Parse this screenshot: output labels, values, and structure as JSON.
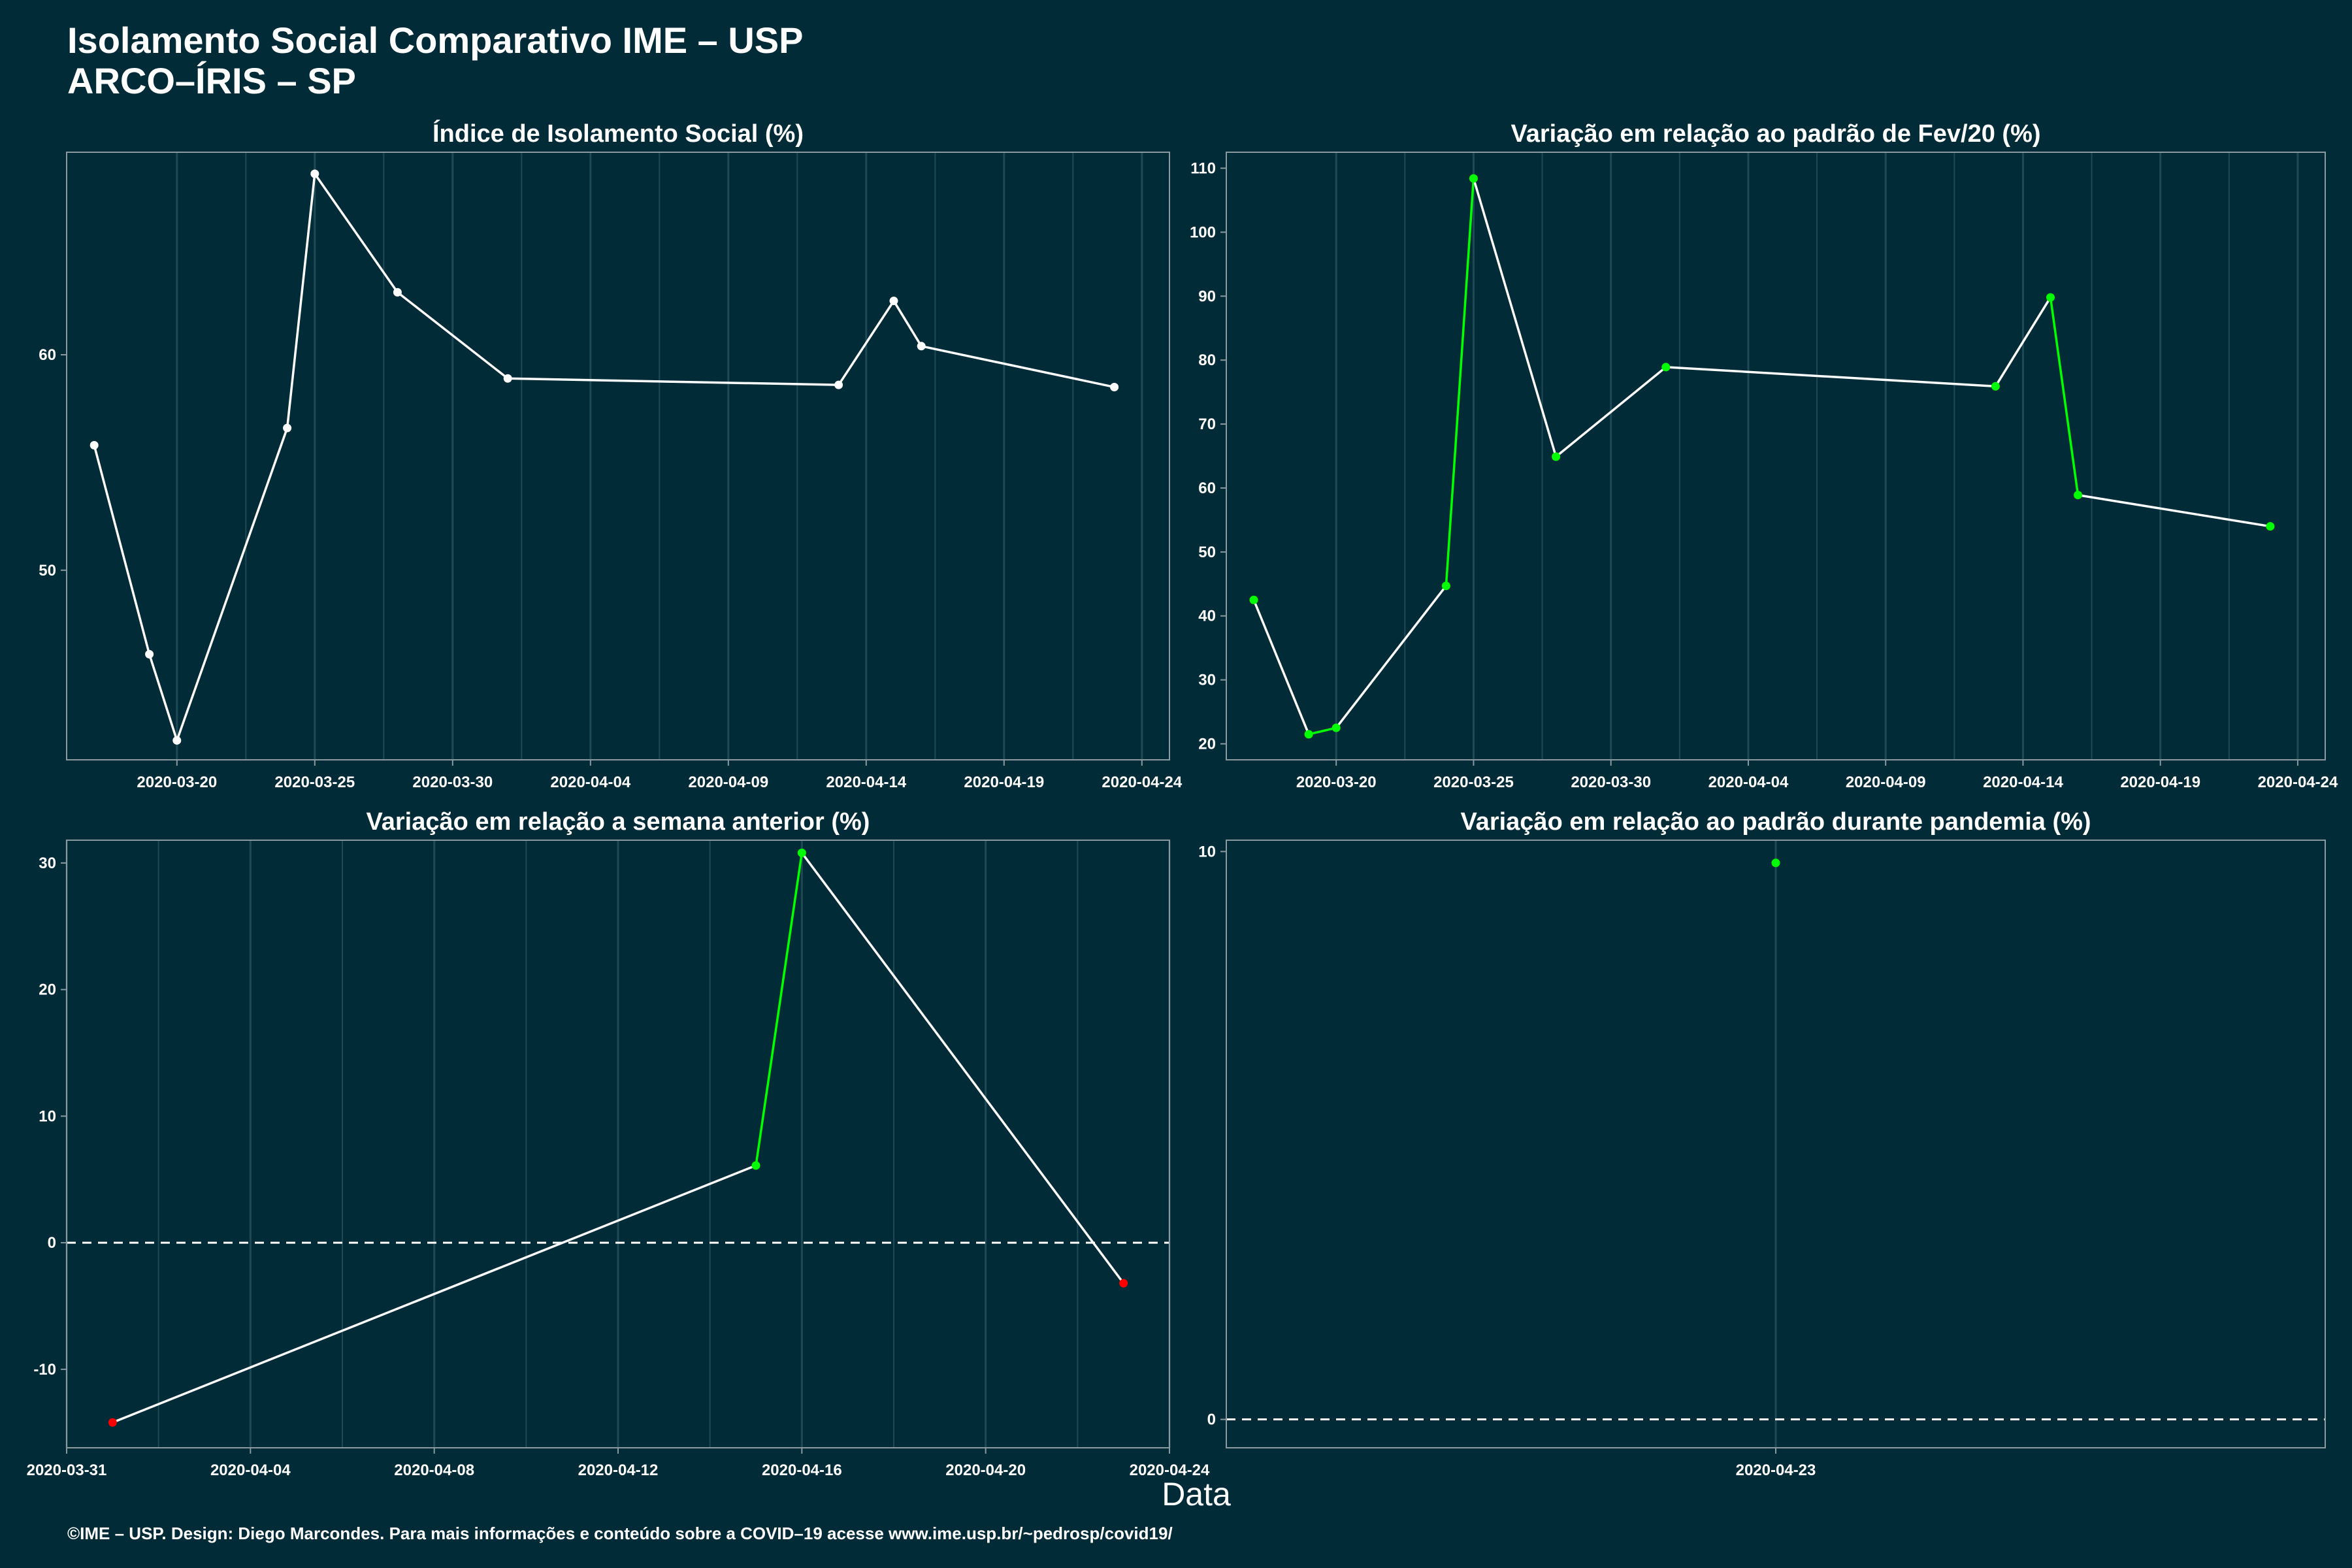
{
  "title": {
    "line1": "Isolamento Social Comparativo IME – USP",
    "line2": "ARCO–ÍRIS – SP"
  },
  "footer": "©IME – USP. Design: Diego Marcondes. Para mais informações e conteúdo sobre a COVID–19 acesse www.ime.usp.br/~pedrosp/covid19/",
  "colors": {
    "background": "#022b38",
    "line": "#ffffff",
    "positive": "#00ff00",
    "negative": "#ff0000",
    "panel_border": "#8a9aa0",
    "grid": "#1f4a55"
  },
  "chart_data": [
    {
      "type": "line",
      "title": "Índice de Isolamento Social (%)",
      "xlabel": "Data",
      "ylabel": "",
      "x_axis": "date",
      "xlim": [
        "2020-03-16",
        "2020-04-25"
      ],
      "ylim": [
        41.2,
        69.4
      ],
      "x_ticks": [
        "2020-03-20",
        "2020-03-25",
        "2020-03-30",
        "2020-04-04",
        "2020-04-09",
        "2020-04-14",
        "2020-04-19",
        "2020-04-24"
      ],
      "y_ticks": [
        50,
        60
      ],
      "grid": true,
      "series": [
        {
          "x": [
            "2020-03-17",
            "2020-03-19",
            "2020-03-20",
            "2020-03-24",
            "2020-03-25",
            "2020-03-28",
            "2020-04-01",
            "2020-04-13",
            "2020-04-15",
            "2020-04-16",
            "2020-04-23"
          ],
          "values": [
            55.8,
            46.1,
            42.1,
            56.6,
            68.4,
            62.9,
            58.9,
            58.6,
            62.5,
            60.4,
            58.5
          ],
          "point_colors": [
            "#ffffff",
            "#ffffff",
            "#ffffff",
            "#ffffff",
            "#ffffff",
            "#ffffff",
            "#ffffff",
            "#ffffff",
            "#ffffff",
            "#ffffff",
            "#ffffff"
          ],
          "segment_colors": [
            "#ffffff",
            "#ffffff",
            "#ffffff",
            "#ffffff",
            "#ffffff",
            "#ffffff",
            "#ffffff",
            "#ffffff",
            "#ffffff",
            "#ffffff"
          ]
        }
      ]
    },
    {
      "type": "line",
      "title": "Variação em relação ao padrão de Fev/20 (%)",
      "xlabel": "Data",
      "ylabel": "",
      "x_axis": "date",
      "xlim": [
        "2020-03-16",
        "2020-04-25"
      ],
      "ylim": [
        17.5,
        112.5
      ],
      "x_ticks": [
        "2020-03-20",
        "2020-03-25",
        "2020-03-30",
        "2020-04-04",
        "2020-04-09",
        "2020-04-14",
        "2020-04-19",
        "2020-04-24"
      ],
      "y_ticks": [
        20,
        30,
        40,
        50,
        60,
        70,
        80,
        90,
        100,
        110
      ],
      "grid": true,
      "series": [
        {
          "x": [
            "2020-03-17",
            "2020-03-19",
            "2020-03-20",
            "2020-03-24",
            "2020-03-25",
            "2020-03-28",
            "2020-04-01",
            "2020-04-13",
            "2020-04-15",
            "2020-04-16",
            "2020-04-23"
          ],
          "values": [
            42.5,
            21.5,
            22.5,
            44.7,
            108.4,
            64.9,
            78.9,
            75.9,
            89.8,
            58.9,
            54.0
          ],
          "point_colors": [
            "#00ff00",
            "#00ff00",
            "#00ff00",
            "#00ff00",
            "#00ff00",
            "#00ff00",
            "#00ff00",
            "#00ff00",
            "#00ff00",
            "#00ff00",
            "#00ff00"
          ],
          "segment_colors": [
            "#ffffff",
            "#00ff00",
            "#ffffff",
            "#00ff00",
            "#ffffff",
            "#ffffff",
            "#ffffff",
            "#ffffff",
            "#00ff00",
            "#ffffff"
          ]
        }
      ]
    },
    {
      "type": "line",
      "title": "Variação em relação a semana anterior (%)",
      "xlabel": "Data",
      "ylabel": "",
      "x_axis": "date",
      "xlim": [
        "2020-03-31",
        "2020-04-24"
      ],
      "ylim": [
        -16.2,
        31.8
      ],
      "x_ticks": [
        "2020-03-31",
        "2020-04-04",
        "2020-04-08",
        "2020-04-12",
        "2020-04-16",
        "2020-04-20",
        "2020-04-24"
      ],
      "y_ticks": [
        -10,
        0,
        10,
        20,
        30
      ],
      "grid": true,
      "reference_line": 0,
      "series": [
        {
          "x": [
            "2020-04-01",
            "2020-04-15",
            "2020-04-16",
            "2020-04-23"
          ],
          "values": [
            -14.2,
            6.1,
            30.8,
            -3.2
          ],
          "point_colors": [
            "#ff0000",
            "#00ff00",
            "#00ff00",
            "#ff0000"
          ],
          "segment_colors": [
            "#ffffff",
            "#00ff00",
            "#ffffff"
          ]
        }
      ]
    },
    {
      "type": "scatter",
      "title": "Variação em relação ao padrão durante pandemia (%)",
      "xlabel": "Data",
      "ylabel": "",
      "x_axis": "date",
      "xlim": [
        "2020-04-22",
        "2020-04-24"
      ],
      "ylim": [
        -0.5,
        10.2
      ],
      "x_ticks": [
        "2020-04-23"
      ],
      "y_ticks": [
        0,
        10
      ],
      "grid": true,
      "reference_line": 0,
      "series": [
        {
          "x": [
            "2020-04-23"
          ],
          "values": [
            9.8
          ],
          "point_colors": [
            "#00ff00"
          ],
          "segment_colors": []
        }
      ]
    }
  ]
}
